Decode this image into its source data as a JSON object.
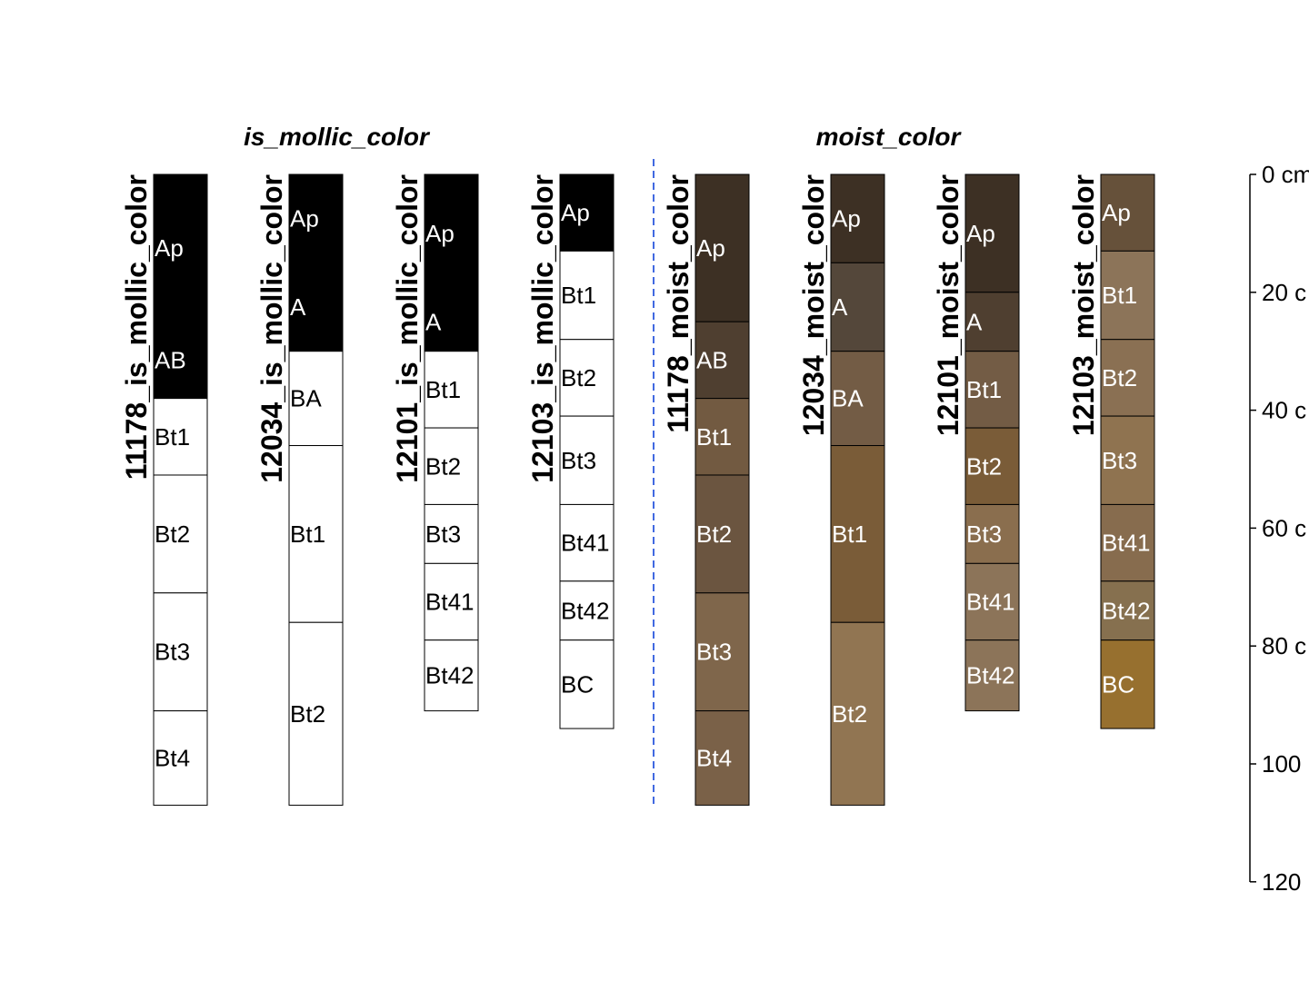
{
  "chart_data": {
    "type": "soil-profile-sketch",
    "groups": [
      {
        "title": "is_mollic_color"
      },
      {
        "title": "moist_color"
      }
    ],
    "depth_axis": {
      "range": [
        0,
        120
      ],
      "ticks": [
        {
          "value": 0,
          "label": "0 cm"
        },
        {
          "value": 20,
          "label": "20 c"
        },
        {
          "value": 40,
          "label": "40 c"
        },
        {
          "value": 60,
          "label": "60 c"
        },
        {
          "value": 80,
          "label": "80 c"
        },
        {
          "value": 100,
          "label": "100"
        },
        {
          "value": 120,
          "label": "120"
        }
      ]
    },
    "profiles": [
      {
        "id": "11178_is_mollic_color",
        "group": 0,
        "horizons": [
          {
            "name": "Ap",
            "top": 0,
            "bottom": 25,
            "color": "#000000"
          },
          {
            "name": "AB",
            "top": 25,
            "bottom": 38,
            "color": "#000000"
          },
          {
            "name": "Bt1",
            "top": 38,
            "bottom": 51,
            "color": "#ffffff"
          },
          {
            "name": "Bt2",
            "top": 51,
            "bottom": 71,
            "color": "#ffffff"
          },
          {
            "name": "Bt3",
            "top": 71,
            "bottom": 91,
            "color": "#ffffff"
          },
          {
            "name": "Bt4",
            "top": 91,
            "bottom": 107,
            "color": "#ffffff"
          }
        ]
      },
      {
        "id": "12034_is_mollic_color",
        "group": 0,
        "horizons": [
          {
            "name": "Ap",
            "top": 0,
            "bottom": 15,
            "color": "#000000"
          },
          {
            "name": "A",
            "top": 15,
            "bottom": 30,
            "color": "#000000"
          },
          {
            "name": "BA",
            "top": 30,
            "bottom": 46,
            "color": "#ffffff"
          },
          {
            "name": "Bt1",
            "top": 46,
            "bottom": 76,
            "color": "#ffffff"
          },
          {
            "name": "Bt2",
            "top": 76,
            "bottom": 107,
            "color": "#ffffff"
          }
        ]
      },
      {
        "id": "12101_is_mollic_color",
        "group": 0,
        "horizons": [
          {
            "name": "Ap",
            "top": 0,
            "bottom": 20,
            "color": "#000000"
          },
          {
            "name": "A",
            "top": 20,
            "bottom": 30,
            "color": "#000000"
          },
          {
            "name": "Bt1",
            "top": 30,
            "bottom": 43,
            "color": "#ffffff"
          },
          {
            "name": "Bt2",
            "top": 43,
            "bottom": 56,
            "color": "#ffffff"
          },
          {
            "name": "Bt3",
            "top": 56,
            "bottom": 66,
            "color": "#ffffff"
          },
          {
            "name": "Bt41",
            "top": 66,
            "bottom": 79,
            "color": "#ffffff"
          },
          {
            "name": "Bt42",
            "top": 79,
            "bottom": 91,
            "color": "#ffffff"
          }
        ]
      },
      {
        "id": "12103_is_mollic_color",
        "group": 0,
        "horizons": [
          {
            "name": "Ap",
            "top": 0,
            "bottom": 13,
            "color": "#000000"
          },
          {
            "name": "Bt1",
            "top": 13,
            "bottom": 28,
            "color": "#ffffff"
          },
          {
            "name": "Bt2",
            "top": 28,
            "bottom": 41,
            "color": "#ffffff"
          },
          {
            "name": "Bt3",
            "top": 41,
            "bottom": 56,
            "color": "#ffffff"
          },
          {
            "name": "Bt41",
            "top": 56,
            "bottom": 69,
            "color": "#ffffff"
          },
          {
            "name": "Bt42",
            "top": 69,
            "bottom": 79,
            "color": "#ffffff"
          },
          {
            "name": "BC",
            "top": 79,
            "bottom": 94,
            "color": "#ffffff"
          }
        ]
      },
      {
        "id": "11178_moist_color",
        "group": 1,
        "horizons": [
          {
            "name": "Ap",
            "top": 0,
            "bottom": 25,
            "color": "#3d3024"
          },
          {
            "name": "AB",
            "top": 25,
            "bottom": 38,
            "color": "#4f3f30"
          },
          {
            "name": "Bt1",
            "top": 38,
            "bottom": 51,
            "color": "#725a41"
          },
          {
            "name": "Bt2",
            "top": 51,
            "bottom": 71,
            "color": "#6b5540"
          },
          {
            "name": "Bt3",
            "top": 71,
            "bottom": 91,
            "color": "#7f664b"
          },
          {
            "name": "Bt4",
            "top": 91,
            "bottom": 107,
            "color": "#7a6148"
          }
        ]
      },
      {
        "id": "12034_moist_color",
        "group": 1,
        "horizons": [
          {
            "name": "Ap",
            "top": 0,
            "bottom": 15,
            "color": "#3d3024"
          },
          {
            "name": "A",
            "top": 15,
            "bottom": 30,
            "color": "#54473a"
          },
          {
            "name": "BA",
            "top": 30,
            "bottom": 46,
            "color": "#735c45"
          },
          {
            "name": "Bt1",
            "top": 46,
            "bottom": 76,
            "color": "#7a5c38"
          },
          {
            "name": "Bt2",
            "top": 76,
            "bottom": 107,
            "color": "#917552"
          }
        ]
      },
      {
        "id": "12101_moist_color",
        "group": 1,
        "horizons": [
          {
            "name": "Ap",
            "top": 0,
            "bottom": 20,
            "color": "#3d3024"
          },
          {
            "name": "A",
            "top": 20,
            "bottom": 30,
            "color": "#4f3f30"
          },
          {
            "name": "Bt1",
            "top": 30,
            "bottom": 43,
            "color": "#735c45"
          },
          {
            "name": "Bt2",
            "top": 43,
            "bottom": 56,
            "color": "#7a5c38"
          },
          {
            "name": "Bt3",
            "top": 56,
            "bottom": 66,
            "color": "#8a6e4e"
          },
          {
            "name": "Bt41",
            "top": 66,
            "bottom": 79,
            "color": "#8c7459"
          },
          {
            "name": "Bt42",
            "top": 79,
            "bottom": 91,
            "color": "#8c7459"
          }
        ]
      },
      {
        "id": "12103_moist_color",
        "group": 1,
        "horizons": [
          {
            "name": "Ap",
            "top": 0,
            "bottom": 13,
            "color": "#66513a"
          },
          {
            "name": "Bt1",
            "top": 13,
            "bottom": 28,
            "color": "#8c7459"
          },
          {
            "name": "Bt2",
            "top": 28,
            "bottom": 41,
            "color": "#8a7053"
          },
          {
            "name": "Bt3",
            "top": 41,
            "bottom": 56,
            "color": "#8f7350"
          },
          {
            "name": "Bt41",
            "top": 56,
            "bottom": 69,
            "color": "#876c4e"
          },
          {
            "name": "Bt42",
            "top": 69,
            "bottom": 79,
            "color": "#86704f"
          },
          {
            "name": "BC",
            "top": 79,
            "bottom": 94,
            "color": "#97702f"
          }
        ]
      }
    ]
  }
}
